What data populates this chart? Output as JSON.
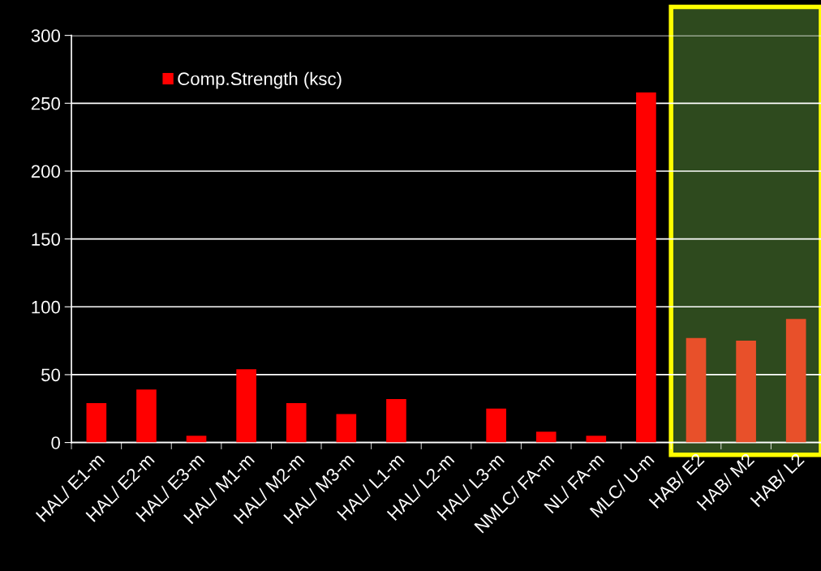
{
  "chart_data": {
    "type": "bar",
    "categories": [
      "HAL/ E1-m",
      "HAL/ E2-m",
      "HAL/ E3-m",
      "HAL/ M1-m",
      "HAL/ M2-m",
      "HAL/ M3-m",
      "HAL/ L1-m",
      "HAL/ L2-m",
      "HAL/ L3-m",
      "NMLC/ FA-m",
      "NL/ FA-m",
      "MLC/ U-m",
      "HAB/ E2",
      "HAB/ M2",
      "HAB/ L2"
    ],
    "series": [
      {
        "name": "Comp.Strength (ksc)",
        "color": "#ff0000",
        "values": [
          29,
          39,
          5,
          54,
          29,
          21,
          32,
          0,
          25,
          8,
          5,
          258,
          77,
          75,
          91
        ],
        "colors": [
          "#ff0000",
          "#ff0000",
          "#ff0000",
          "#ff0000",
          "#ff0000",
          "#ff0000",
          "#ff0000",
          "#ff0000",
          "#ff0000",
          "#ff0000",
          "#ff0000",
          "#ff0000",
          "#e8502a",
          "#e8502a",
          "#e8502a"
        ]
      }
    ],
    "ylim": [
      0,
      300
    ],
    "yticks": [
      0,
      50,
      100,
      150,
      200,
      250,
      300
    ],
    "grid": "y",
    "legend": "top left",
    "bands": [
      {
        "axis": "x",
        "from": "HAB/ E2",
        "to": "HAB/ L2",
        "color": "#2e4a1e"
      }
    ]
  }
}
